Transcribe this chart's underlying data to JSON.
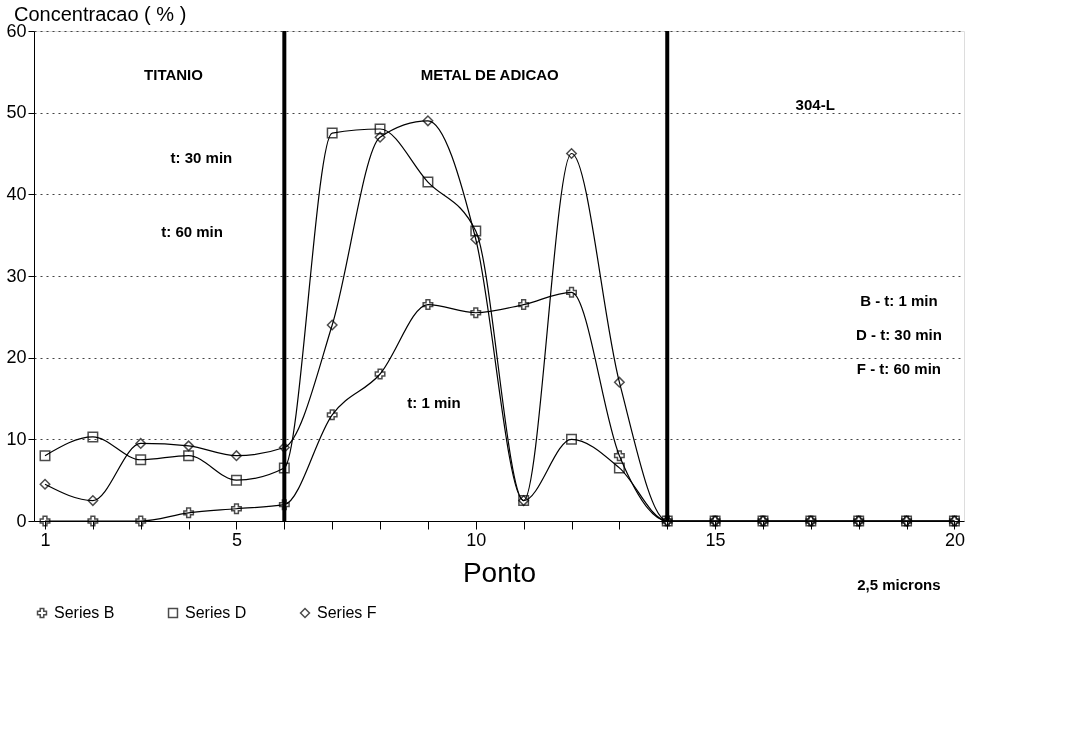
{
  "chart_data": {
    "type": "line",
    "xlabel": "Ponto",
    "ylabel": "Concentracao ( % )",
    "x": [
      1,
      2,
      3,
      4,
      5,
      6,
      7,
      8,
      9,
      10,
      11,
      12,
      13,
      14,
      15,
      16,
      17,
      18,
      19,
      20
    ],
    "series": [
      {
        "name": "Series B",
        "color": "#000000",
        "marker": "cross",
        "values": [
          0,
          0,
          0,
          1,
          1.5,
          2,
          13,
          18,
          26.5,
          25.5,
          26.5,
          28,
          8,
          0,
          0,
          0,
          0,
          0,
          0,
          0
        ]
      },
      {
        "name": "Series D",
        "color": "#000000",
        "marker": "square",
        "values": [
          8,
          10.3,
          7.5,
          8,
          5,
          6.5,
          47.5,
          48,
          41.5,
          35.5,
          2.5,
          10,
          6.5,
          0,
          0,
          0,
          0,
          0,
          0,
          0
        ]
      },
      {
        "name": "Series F",
        "color": "#000000",
        "marker": "diamond",
        "values": [
          4.5,
          2.5,
          9.5,
          9.2,
          8,
          9,
          24,
          47,
          49,
          34.5,
          2.5,
          45,
          17,
          0,
          0,
          0,
          0,
          0,
          0,
          0
        ]
      }
    ],
    "xlim": [
      0.77,
      20.2
    ],
    "ylim": [
      0,
      60
    ],
    "xticks": [
      1,
      {
        "value": 2,
        "label": null
      },
      {
        "value": 3,
        "label": null
      },
      {
        "value": 4,
        "label": null
      },
      5,
      {
        "value": 6,
        "label": null
      },
      {
        "value": 7,
        "label": null
      },
      {
        "value": 8,
        "label": null
      },
      {
        "value": 9,
        "label": null
      },
      10,
      {
        "value": 11,
        "label": null
      },
      {
        "value": 12,
        "label": null
      },
      {
        "value": 13,
        "label": null
      },
      {
        "value": 14,
        "label": null
      },
      15,
      {
        "value": 16,
        "label": null
      },
      {
        "value": 17,
        "label": null
      },
      {
        "value": 18,
        "label": null
      },
      {
        "value": 19,
        "label": null
      },
      20
    ],
    "yticks": [
      0,
      10,
      20,
      30,
      40,
      50,
      60
    ],
    "grid": "y",
    "legend": "bottom",
    "line_style": "solid",
    "ref_lines": [
      {
        "axis": "x",
        "value": 6,
        "label": null
      },
      {
        "axis": "x",
        "value": 14,
        "label": null
      }
    ],
    "annotations": [
      "TITANIO",
      "METAL DE ADICAO",
      "304-L",
      "t: 30 min",
      "t: 60 min",
      "t: 1 min",
      "B - t: 1  min",
      "D - t: 30 min",
      "F - t: 60 min",
      "2,5 microns"
    ]
  }
}
